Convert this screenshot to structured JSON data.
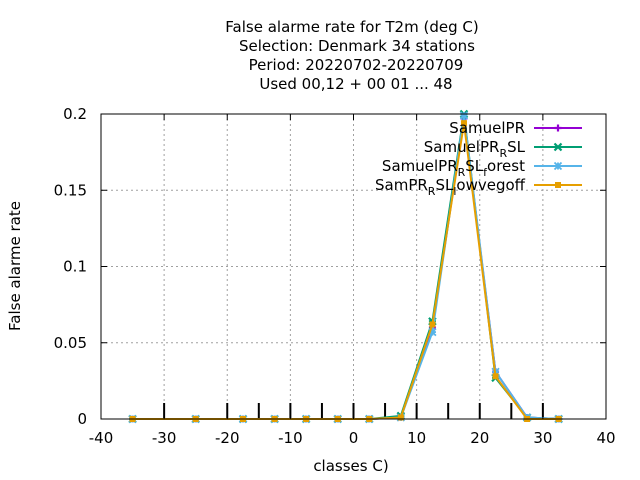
{
  "chart_data": {
    "type": "line",
    "title_lines": [
      "False alarme rate  for T2m (deg C)",
      "Selection: Denmark     34 stations",
      "Period: 20220702-20220709",
      "Used  00,12  + 00 01 ... 48"
    ],
    "xlabel": "classes C)",
    "ylabel": "False alarme rate",
    "xlim": [
      -40,
      40
    ],
    "ylim": [
      0,
      0.2
    ],
    "x_ticks": [
      "-40",
      "-30",
      "-20",
      "-10",
      "0",
      "10",
      "20",
      "30",
      "40"
    ],
    "y_ticks": [
      "0",
      "0.05",
      "0.1",
      "0.15",
      "0.2"
    ],
    "grid": true,
    "legend_position": "top-right",
    "class_markers": [
      -30,
      -20,
      -15,
      -10,
      -5,
      0,
      5,
      10,
      15,
      20,
      25,
      30
    ],
    "x": [
      -35,
      -25,
      -17.5,
      -12.5,
      -7.5,
      -2.5,
      2.5,
      7.5,
      12.5,
      17.5,
      22.5,
      27.5,
      32.5
    ],
    "series": [
      {
        "name": "SamuelPR",
        "color": "#9400d3",
        "marker": "plus",
        "values": [
          0,
          0,
          0,
          0,
          0,
          0,
          0,
          0.001,
          0.06,
          0.197,
          0.031,
          0.001,
          0
        ]
      },
      {
        "name": "SamuelPR_R SL",
        "name_parts": [
          "SamuelPR",
          "R",
          "SL"
        ],
        "color": "#009e73",
        "marker": "cross",
        "values": [
          0,
          0,
          0,
          0,
          0,
          0,
          0,
          0.002,
          0.064,
          0.2,
          0.027,
          0.001,
          0
        ]
      },
      {
        "name": "SamuelPR_R SL_f orest",
        "name_parts": [
          "SamuelPR",
          "R",
          "SL",
          "f",
          "orest"
        ],
        "color": "#56b4e9",
        "marker": "star",
        "values": [
          0,
          0,
          0,
          0,
          0,
          0,
          0,
          0.001,
          0.057,
          0.199,
          0.031,
          0.001,
          0
        ]
      },
      {
        "name": "SamPR_R SL_l owvegoff",
        "name_parts": [
          "SamPR",
          "R",
          "SL",
          "l",
          "owvegoff"
        ],
        "color": "#e69f00",
        "marker": "square",
        "values": [
          0,
          0,
          0,
          0,
          0,
          0,
          0,
          0.001,
          0.062,
          0.194,
          0.028,
          0,
          0
        ]
      }
    ]
  }
}
